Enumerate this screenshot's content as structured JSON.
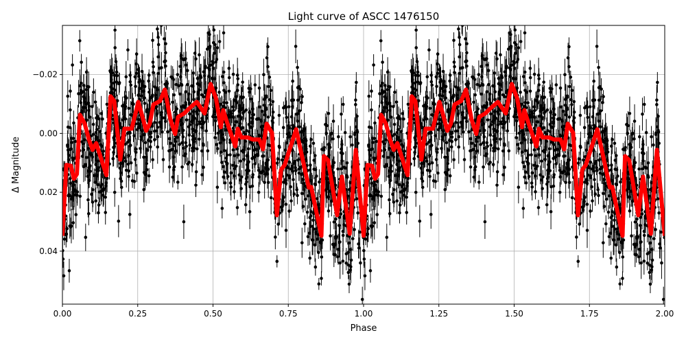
{
  "chart_data": {
    "type": "scatter",
    "title": "Light curve of ASCC 1476150",
    "xlabel": "Phase",
    "ylabel": "Δ Magnitude",
    "xlim": [
      0,
      2
    ],
    "ylim": [
      0.058,
      -0.0367
    ],
    "y_inverted": true,
    "grid": true,
    "x_ticks": [
      "0.00",
      "0.25",
      "0.50",
      "0.75",
      "1.00",
      "1.25",
      "1.50",
      "1.75",
      "2.00"
    ],
    "x_tick_values": [
      0,
      0.25,
      0.5,
      0.75,
      1.0,
      1.25,
      1.5,
      1.75,
      2.0
    ],
    "y_ticks": [
      "−0.02",
      "0.00",
      "0.02",
      "0.04"
    ],
    "y_tick_values": [
      -0.02,
      0.0,
      0.02,
      0.04
    ],
    "colors": {
      "points": "#000000",
      "model": "#ff0000",
      "grid": "#b0b0b0"
    },
    "series": [
      {
        "kind": "data points with error bars",
        "color": "#000000"
      },
      {
        "kind": "model curve (repeats each phase cycle)",
        "color": "#ff0000",
        "phase": [
          0.0,
          0.013,
          0.028,
          0.038,
          0.048,
          0.058,
          0.074,
          0.088,
          0.1,
          0.112,
          0.146,
          0.16,
          0.172,
          0.192,
          0.206,
          0.23,
          0.252,
          0.264,
          0.278,
          0.29,
          0.302,
          0.324,
          0.34,
          0.358,
          0.374,
          0.384,
          0.404,
          0.422,
          0.446,
          0.472,
          0.492,
          0.51,
          0.526,
          0.534,
          0.548,
          0.574,
          0.582,
          0.594,
          0.616,
          0.632,
          0.654,
          0.666,
          0.678,
          0.696,
          0.712,
          0.726,
          0.738,
          0.776,
          0.818,
          0.826,
          0.86,
          0.868,
          0.882,
          0.912,
          0.928,
          0.954,
          0.974,
          1.0
        ],
        "magnitude": [
          0.0348,
          0.0107,
          0.011,
          0.0154,
          0.0138,
          -0.0063,
          -0.0033,
          0.0021,
          0.0056,
          0.0033,
          0.0142,
          -0.0126,
          -0.011,
          0.0089,
          -0.0016,
          -0.0016,
          -0.0107,
          -0.0063,
          -0.0009,
          -0.0033,
          -0.0098,
          -0.011,
          -0.0149,
          -0.0049,
          0.0002,
          -0.0056,
          -0.0068,
          -0.0086,
          -0.0107,
          -0.0068,
          -0.0168,
          -0.0119,
          -0.0021,
          -0.0079,
          -0.0033,
          0.0044,
          -0.0016,
          0.0014,
          0.0014,
          0.0021,
          0.0021,
          0.0054,
          -0.0033,
          -0.0002,
          0.0278,
          0.0124,
          0.0107,
          -0.0014,
          0.0184,
          0.0182,
          0.0348,
          0.0077,
          0.0091,
          0.0278,
          0.0147,
          0.0341,
          0.0056,
          0.0348
        ]
      }
    ]
  }
}
